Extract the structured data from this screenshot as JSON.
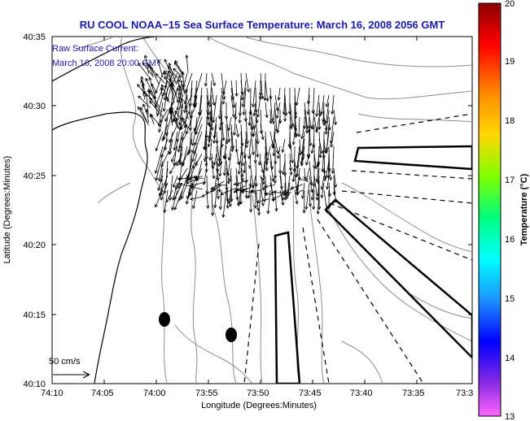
{
  "title": "RU COOL  NOAA−15  Sea Surface Temperature:  March 16, 2008 2056 GMT",
  "annotation": {
    "line1": "Raw Surface Current:",
    "line2": "March 16, 2008 20:00 GMT"
  },
  "axes": {
    "xlabel": "Longitude (Degrees:Minutes)",
    "ylabel": "Latitude (Degrees:Minutes)",
    "xticks": [
      "74:10",
      "74:05",
      "74:00",
      "73:55",
      "73:50",
      "73:45",
      "73:40",
      "73:35",
      "73:3"
    ],
    "yticks": [
      "40:35",
      "40:30",
      "40:25",
      "40:20",
      "40:15",
      "40:10"
    ]
  },
  "scale_bar": {
    "label": "50 cm/s"
  },
  "colorbar": {
    "label": "Temperature (°C)",
    "ticks": [
      "20",
      "19",
      "18",
      "17",
      "16",
      "15",
      "14",
      "13"
    ],
    "stops": [
      "#8b0000",
      "#ff0000",
      "#ff8c00",
      "#ffd700",
      "#7fff00",
      "#00ff7f",
      "#00ffff",
      "#1e90ff",
      "#0000ff",
      "#8a2be2",
      "#ff66ff"
    ]
  },
  "colors": {
    "title": "#1a1aa6",
    "contour": "#8c8c8c",
    "coast": "#000000"
  }
}
